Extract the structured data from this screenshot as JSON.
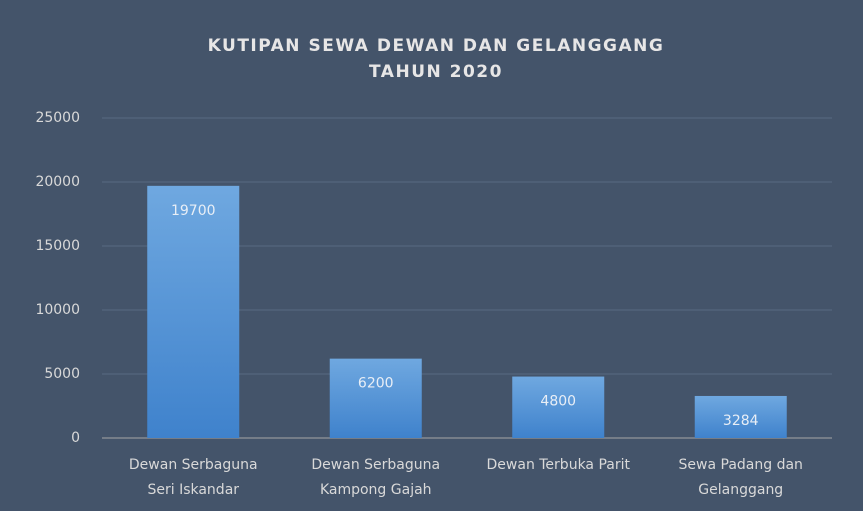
{
  "chart_data": {
    "type": "bar",
    "title": "KUTIPAN SEWA DEWAN DAN GELANGGANG",
    "subtitle": "TAHUN 2020",
    "categories": [
      [
        "Dewan Serbaguna",
        "Seri Iskandar"
      ],
      [
        "Dewan Serbaguna",
        "Kampong Gajah"
      ],
      [
        "Dewan Terbuka Parit"
      ],
      [
        "Sewa Padang dan",
        "Gelanggang"
      ]
    ],
    "values": [
      19700,
      6200,
      4800,
      3284
    ],
    "color": "#5b9bd5",
    "ylim": [
      0,
      25000
    ],
    "yticks": [
      0,
      5000,
      10000,
      15000,
      20000,
      25000
    ],
    "grid": true
  }
}
